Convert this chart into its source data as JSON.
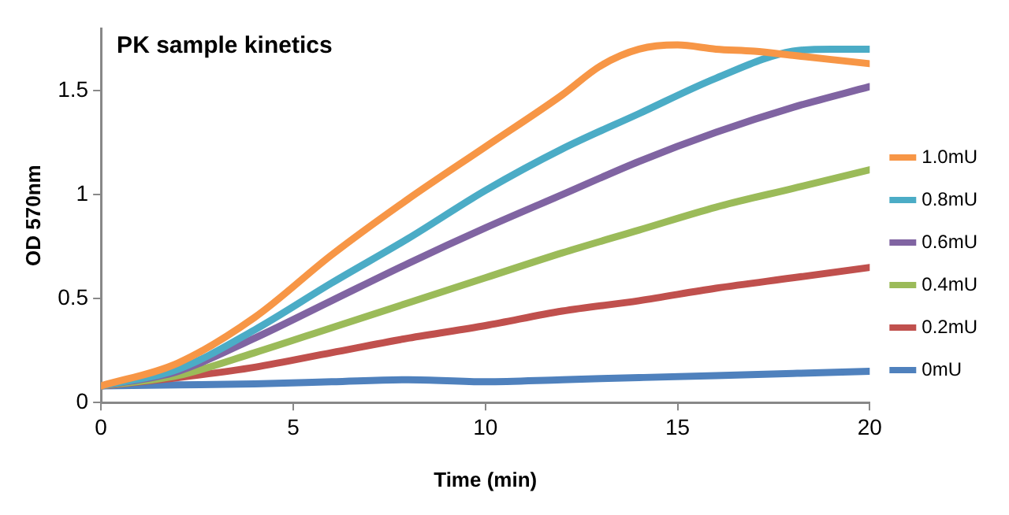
{
  "chart_data": {
    "type": "line",
    "title": "PK sample kinetics",
    "xlabel": "Time (min)",
    "ylabel": "OD 570nm",
    "x": [
      0,
      2,
      4,
      6,
      8,
      10,
      12,
      14,
      16,
      18,
      20
    ],
    "xlim": [
      0,
      20
    ],
    "xticks": [
      0,
      5,
      10,
      15,
      20
    ],
    "ylim": [
      0,
      1.8
    ],
    "yticks": [
      0,
      0.5,
      1,
      1.5
    ],
    "grid": false,
    "legend": "right",
    "marker": "none",
    "line_style": "solid",
    "series": [
      {
        "name": "1.0mU",
        "color": "#f79646",
        "x": [
          0,
          2,
          4,
          6,
          8,
          10,
          12,
          13,
          14,
          15,
          16,
          17,
          18,
          19,
          20
        ],
        "values": [
          0.08,
          0.19,
          0.41,
          0.71,
          0.98,
          1.23,
          1.48,
          1.62,
          1.7,
          1.72,
          1.7,
          1.69,
          1.67,
          1.65,
          1.63
        ]
      },
      {
        "name": "0.8mU",
        "color": "#4bacc6",
        "x": [
          0,
          2,
          4,
          6,
          8,
          10,
          12,
          14,
          16,
          18,
          19,
          20
        ],
        "values": [
          0.08,
          0.16,
          0.35,
          0.575,
          0.79,
          1.02,
          1.22,
          1.39,
          1.56,
          1.69,
          1.7,
          1.7
        ]
      },
      {
        "name": "0.6mU",
        "color": "#8064a2",
        "values": [
          0.08,
          0.15,
          0.31,
          0.49,
          0.67,
          0.84,
          1.0,
          1.16,
          1.3,
          1.42,
          1.52
        ]
      },
      {
        "name": "0.4mU",
        "color": "#9bbb59",
        "values": [
          0.08,
          0.13,
          0.24,
          0.36,
          0.48,
          0.6,
          0.72,
          0.83,
          0.94,
          1.03,
          1.12
        ]
      },
      {
        "name": "0.2mU",
        "color": "#c0504d",
        "values": [
          0.08,
          0.12,
          0.17,
          0.24,
          0.31,
          0.37,
          0.44,
          0.49,
          0.55,
          0.6,
          0.65
        ]
      },
      {
        "name": "0mU",
        "color": "#4f81bd",
        "values": [
          0.08,
          0.085,
          0.09,
          0.1,
          0.11,
          0.1,
          0.11,
          0.12,
          0.13,
          0.14,
          0.15
        ]
      }
    ]
  }
}
